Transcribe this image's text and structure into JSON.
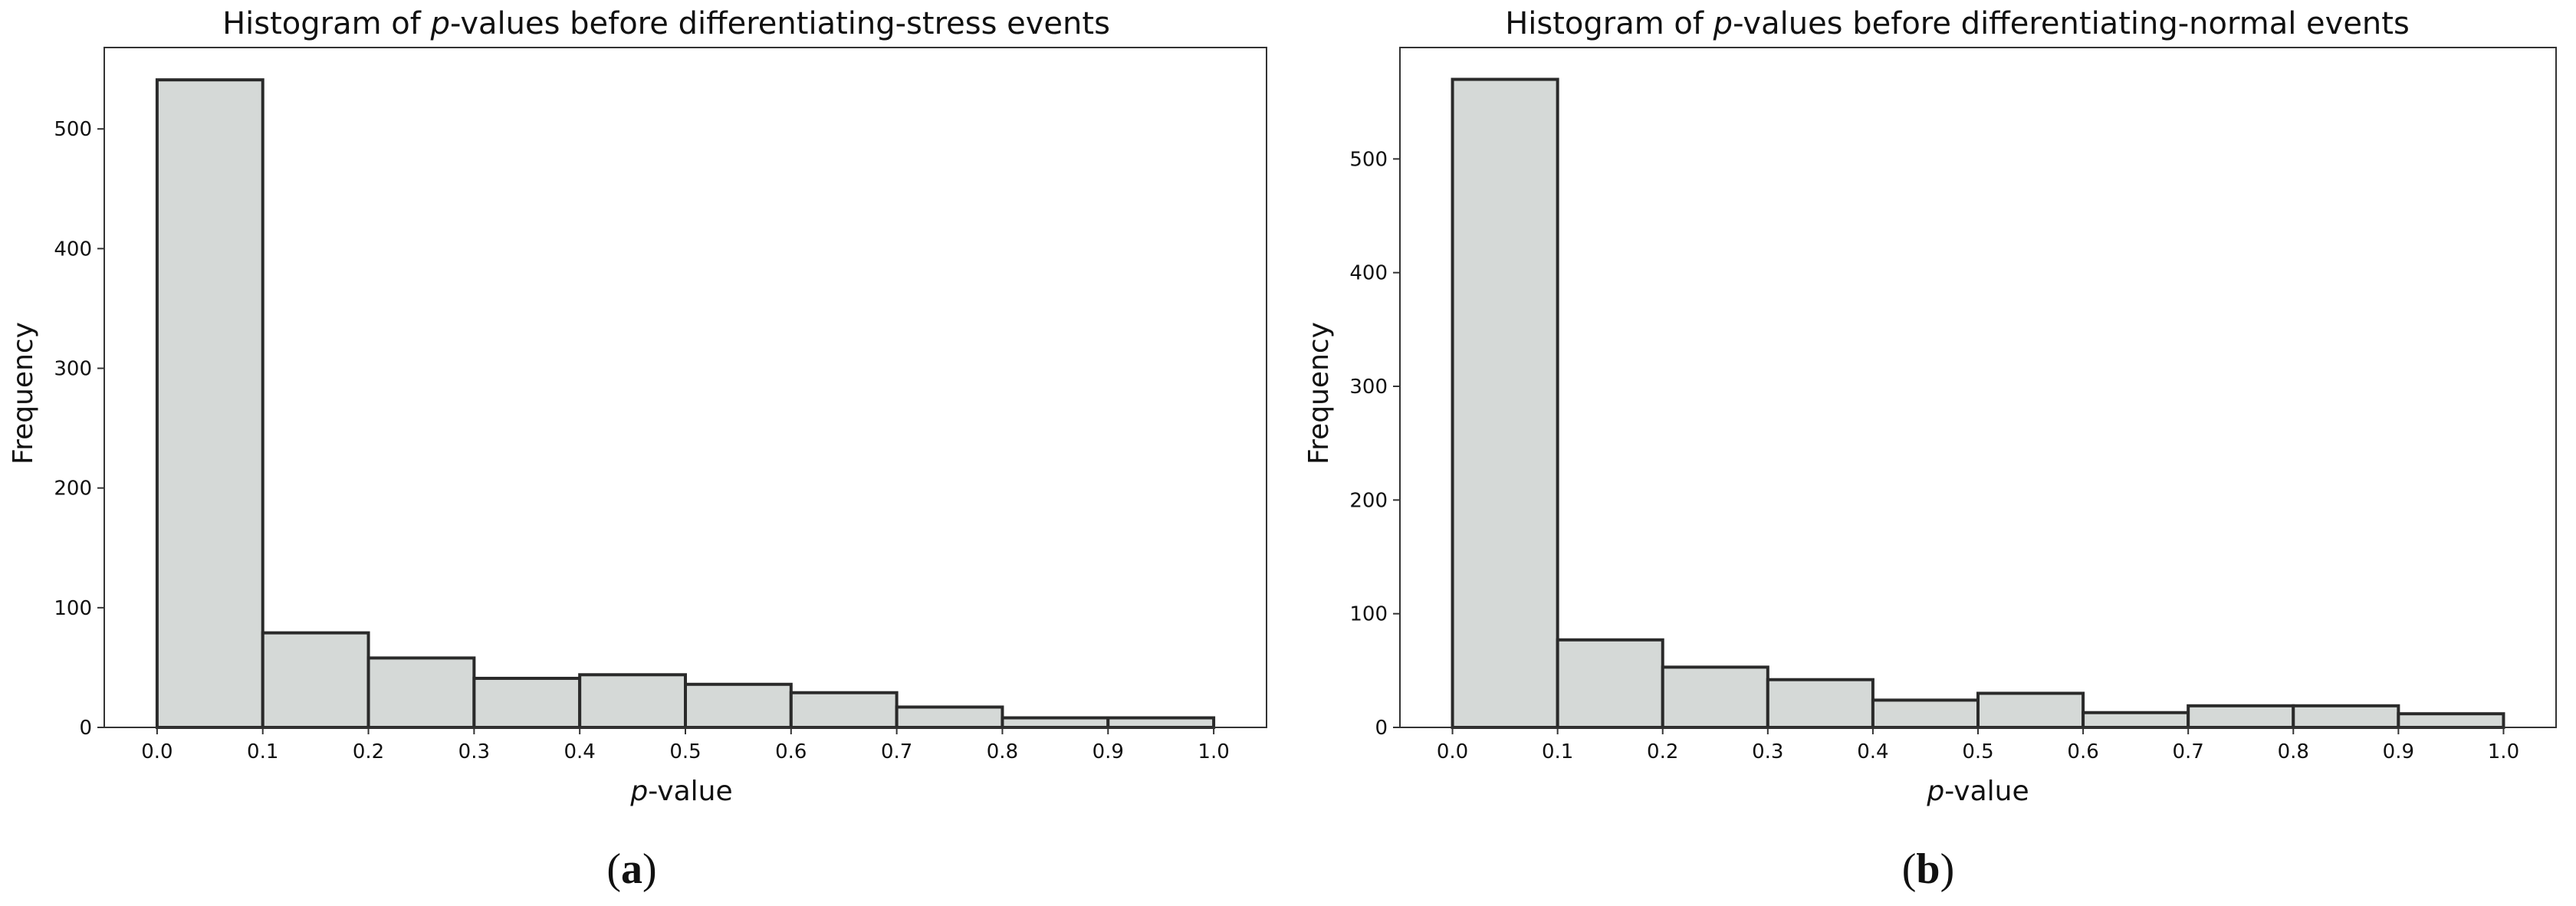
{
  "chart_data": [
    {
      "type": "bar",
      "title_prefix": "Histogram of ",
      "title_italic": "p",
      "title_suffix": "-values before differentiating-stress events",
      "xlabel_italic": "p",
      "xlabel_suffix": "-value",
      "ylabel": "Frequency",
      "panel_label": "(a)",
      "panel_letter": "a",
      "bin_edges": [
        0.0,
        0.1,
        0.2,
        0.3,
        0.4,
        0.5,
        0.6,
        0.7,
        0.8,
        0.9,
        1.0
      ],
      "values": [
        541,
        79,
        58,
        41,
        44,
        36,
        29,
        17,
        8,
        8
      ],
      "xticks": [
        "0.0",
        "0.1",
        "0.2",
        "0.3",
        "0.4",
        "0.5",
        "0.6",
        "0.7",
        "0.8",
        "0.9",
        "1.0"
      ],
      "yticks": [
        0,
        100,
        200,
        300,
        400,
        500
      ],
      "xlim": [
        -0.05,
        1.05
      ],
      "ylim": [
        0,
        568
      ],
      "bar_color": "#d5d9d7",
      "edge_color": "#2a2a2a"
    },
    {
      "type": "bar",
      "title_prefix": "Histogram of ",
      "title_italic": "p",
      "title_suffix": "-values before differentiating-normal events",
      "xlabel_italic": "p",
      "xlabel_suffix": "-value",
      "ylabel": "Frequency",
      "panel_label": "(b)",
      "panel_letter": "b",
      "bin_edges": [
        0.0,
        0.1,
        0.2,
        0.3,
        0.4,
        0.5,
        0.6,
        0.7,
        0.8,
        0.9,
        1.0
      ],
      "values": [
        570,
        77,
        53,
        42,
        24,
        30,
        13,
        19,
        19,
        12
      ],
      "xticks": [
        "0.0",
        "0.1",
        "0.2",
        "0.3",
        "0.4",
        "0.5",
        "0.6",
        "0.7",
        "0.8",
        "0.9",
        "1.0"
      ],
      "yticks": [
        0,
        100,
        200,
        300,
        400,
        500
      ],
      "xlim": [
        -0.05,
        1.05
      ],
      "ylim": [
        0,
        598
      ],
      "bar_color": "#d5d9d7",
      "edge_color": "#2a2a2a"
    }
  ]
}
